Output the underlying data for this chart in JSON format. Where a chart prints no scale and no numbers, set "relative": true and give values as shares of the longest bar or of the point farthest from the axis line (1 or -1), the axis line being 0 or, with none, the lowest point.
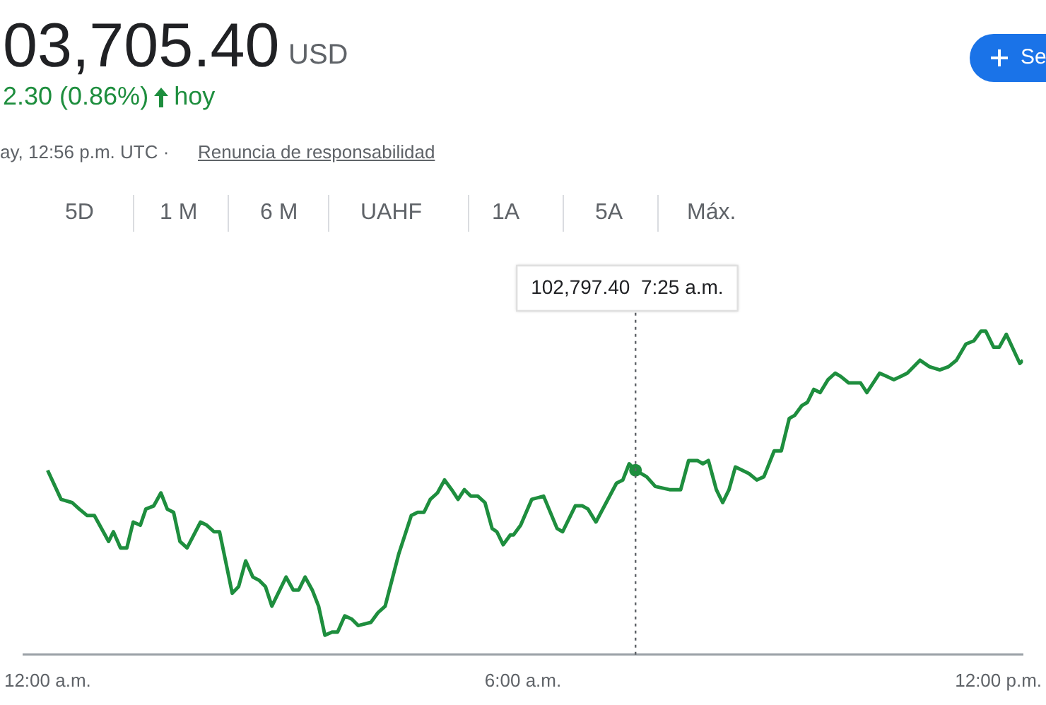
{
  "chart_data": {
    "type": "line",
    "title": "03,705.40",
    "subtitle": "2.30 (0.86%)",
    "relative": true,
    "marker": "none",
    "line_style": "solid",
    "legend": false,
    "grid": false,
    "xlim": [
      -0.3,
      12.31
    ],
    "xticks": [
      {
        "value": 0,
        "label": "12:00 a.m."
      },
      {
        "value": 6,
        "label": "6:00 a.m."
      },
      {
        "value": 12,
        "label": "12:00 p.m."
      }
    ],
    "annotations": [
      "USD",
      "hoy",
      "ay, 12:56 p.m. UTC ·",
      "Renuncia de responsabilidad",
      "5D",
      "1 M",
      "6 M",
      "UAHF",
      "1A",
      "5A",
      "Máx.",
      "Se"
    ],
    "ref_lines": [
      {
        "axis": "x",
        "value": 7.42,
        "label": "102,797.40  7:25 a.m.",
        "line_style": "dotted",
        "color": "#5f6368"
      }
    ],
    "series": [
      {
        "color": "#1e8e3e",
        "x": [
          0,
          0.17,
          0.31,
          0.4,
          0.5,
          0.59,
          0.77,
          0.83,
          0.92,
          1,
          1.08,
          1.17,
          1.24,
          1.34,
          1.43,
          1.51,
          1.59,
          1.67,
          1.76,
          1.93,
          2.01,
          2.1,
          2.17,
          2.33,
          2.41,
          2.5,
          2.59,
          2.67,
          2.75,
          2.83,
          3.01,
          3.1,
          3.17,
          3.25,
          3.34,
          3.42,
          3.5,
          3.59,
          3.66,
          3.75,
          3.84,
          3.92,
          4.08,
          4.17,
          4.26,
          4.43,
          4.59,
          4.67,
          4.75,
          4.83,
          4.92,
          5.01,
          5.1,
          5.18,
          5.26,
          5.34,
          5.43,
          5.52,
          5.61,
          5.67,
          5.75,
          5.84,
          5.88,
          5.97,
          6.11,
          6.26,
          6.43,
          6.5,
          6.66,
          6.75,
          6.82,
          6.92,
          7.18,
          7.26,
          7.34,
          7.42,
          7.56,
          7.67,
          7.85,
          7.99,
          8.09,
          8.2,
          8.27,
          8.34,
          8.44,
          8.52,
          8.6,
          8.68,
          8.85,
          8.95,
          9.04,
          9.17,
          9.26,
          9.36,
          9.43,
          9.52,
          9.59,
          9.67,
          9.75,
          9.85,
          9.94,
          10.01,
          10.11,
          10.26,
          10.34,
          10.5,
          10.59,
          10.68,
          10.77,
          10.85,
          11.01,
          11.13,
          11.26,
          11.37,
          11.47,
          11.59,
          11.69,
          11.78,
          11.84,
          11.94,
          12.01,
          12.1,
          12.27,
          12.31
        ],
        "values": [
          0.57,
          0.48,
          0.47,
          0.45,
          0.43,
          0.43,
          0.35,
          0.38,
          0.33,
          0.33,
          0.41,
          0.4,
          0.45,
          0.46,
          0.5,
          0.45,
          0.44,
          0.35,
          0.33,
          0.41,
          0.4,
          0.38,
          0.38,
          0.19,
          0.21,
          0.29,
          0.24,
          0.23,
          0.21,
          0.15,
          0.24,
          0.2,
          0.2,
          0.24,
          0.2,
          0.15,
          0.06,
          0.07,
          0.07,
          0.12,
          0.11,
          0.09,
          0.1,
          0.13,
          0.15,
          0.31,
          0.43,
          0.44,
          0.44,
          0.48,
          0.5,
          0.54,
          0.51,
          0.48,
          0.51,
          0.49,
          0.49,
          0.47,
          0.39,
          0.38,
          0.34,
          0.37,
          0.37,
          0.4,
          0.48,
          0.49,
          0.39,
          0.38,
          0.46,
          0.46,
          0.45,
          0.41,
          0.53,
          0.54,
          0.59,
          0.57,
          0.55,
          0.52,
          0.51,
          0.51,
          0.6,
          0.6,
          0.59,
          0.6,
          0.51,
          0.47,
          0.51,
          0.58,
          0.56,
          0.54,
          0.55,
          0.63,
          0.63,
          0.73,
          0.74,
          0.77,
          0.78,
          0.82,
          0.81,
          0.85,
          0.87,
          0.86,
          0.84,
          0.84,
          0.81,
          0.87,
          0.86,
          0.85,
          0.86,
          0.87,
          0.91,
          0.89,
          0.88,
          0.89,
          0.91,
          0.96,
          0.97,
          1,
          1,
          0.95,
          0.95,
          0.99,
          0.9,
          0.91
        ]
      }
    ]
  }
}
